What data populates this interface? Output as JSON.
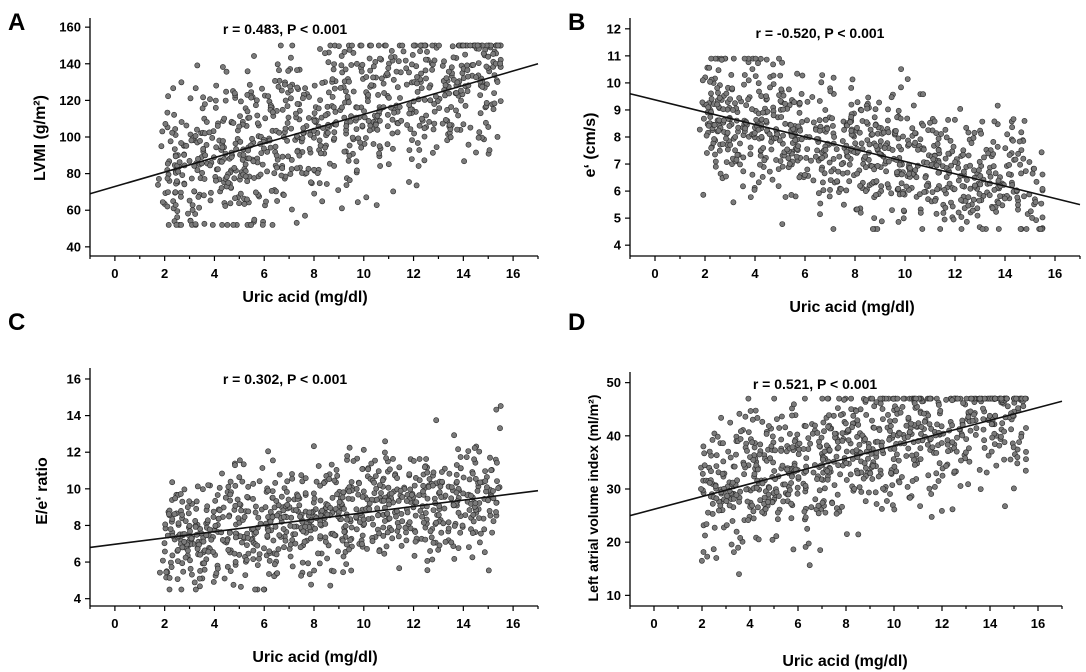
{
  "chart_data": [
    {
      "panel": "A",
      "type": "scatter",
      "annotation": "r = 0.483, P < 0.001",
      "xlabel": "Uric acid (mg/dl)",
      "ylabel": "LVMI (g/m²)",
      "xlim": [
        -1,
        17
      ],
      "ylim": [
        35,
        165
      ],
      "xticks": [
        0,
        2,
        4,
        6,
        8,
        10,
        12,
        14,
        16
      ],
      "yticks": [
        40,
        60,
        80,
        100,
        120,
        140,
        160
      ],
      "regression": {
        "x": [
          -1,
          17
        ],
        "y": [
          69,
          140
        ]
      },
      "points": {
        "n": 850,
        "x_range": [
          2,
          15.5
        ],
        "intercept": 73,
        "slope": 4.2,
        "spread": 22,
        "y_clip": [
          52,
          150
        ],
        "seed": 11
      }
    },
    {
      "panel": "B",
      "type": "scatter",
      "annotation": "r = -0.520, P < 0.001",
      "xlabel": "Uric acid (mg/dl)",
      "ylabel": "e‘ (cm/s)",
      "xlim": [
        -1,
        17
      ],
      "ylim": [
        3.6,
        12.4
      ],
      "xticks": [
        0,
        2,
        4,
        6,
        8,
        10,
        12,
        14,
        16
      ],
      "yticks": [
        4,
        5,
        6,
        7,
        8,
        9,
        10,
        11,
        12
      ],
      "regression": {
        "x": [
          -1,
          17
        ],
        "y": [
          9.6,
          5.5
        ]
      },
      "points": {
        "n": 850,
        "x_range": [
          2,
          15.5
        ],
        "intercept": 9.35,
        "slope": -0.23,
        "spread": 1.2,
        "y_clip": [
          4.6,
          10.9
        ],
        "seed": 23
      }
    },
    {
      "panel": "C",
      "type": "scatter",
      "annotation": "r = 0.302, P < 0.001",
      "xlabel": "Uric acid (mg/dl)",
      "ylabel": "E/e‘ ratio",
      "xlim": [
        -1,
        17
      ],
      "ylim": [
        3.6,
        16.6
      ],
      "xticks": [
        0,
        2,
        4,
        6,
        8,
        10,
        12,
        14,
        16
      ],
      "yticks": [
        4,
        6,
        8,
        10,
        12,
        14,
        16
      ],
      "regression": {
        "x": [
          -1,
          17
        ],
        "y": [
          6.8,
          9.9
        ]
      },
      "points": {
        "n": 850,
        "x_range": [
          2,
          15.5
        ],
        "intercept": 7.0,
        "slope": 0.17,
        "spread": 1.5,
        "y_clip": [
          4.5,
          15.3
        ],
        "seed": 37
      }
    },
    {
      "panel": "D",
      "type": "scatter",
      "annotation": "r = 0.521, P < 0.001",
      "xlabel": "Uric acid (mg/dl)",
      "ylabel": "Left atrial volume index (ml/m²)",
      "xlim": [
        -1,
        17
      ],
      "ylim": [
        8,
        52
      ],
      "xticks": [
        0,
        2,
        4,
        6,
        8,
        10,
        12,
        14,
        16
      ],
      "yticks": [
        10,
        20,
        30,
        40,
        50
      ],
      "regression": {
        "x": [
          -1,
          17
        ],
        "y": [
          25,
          46.5
        ]
      },
      "points": {
        "n": 850,
        "x_range": [
          2,
          15.5
        ],
        "intercept": 27,
        "slope": 1.2,
        "spread": 6.5,
        "y_clip": [
          14,
          47
        ],
        "seed": 51
      }
    }
  ]
}
